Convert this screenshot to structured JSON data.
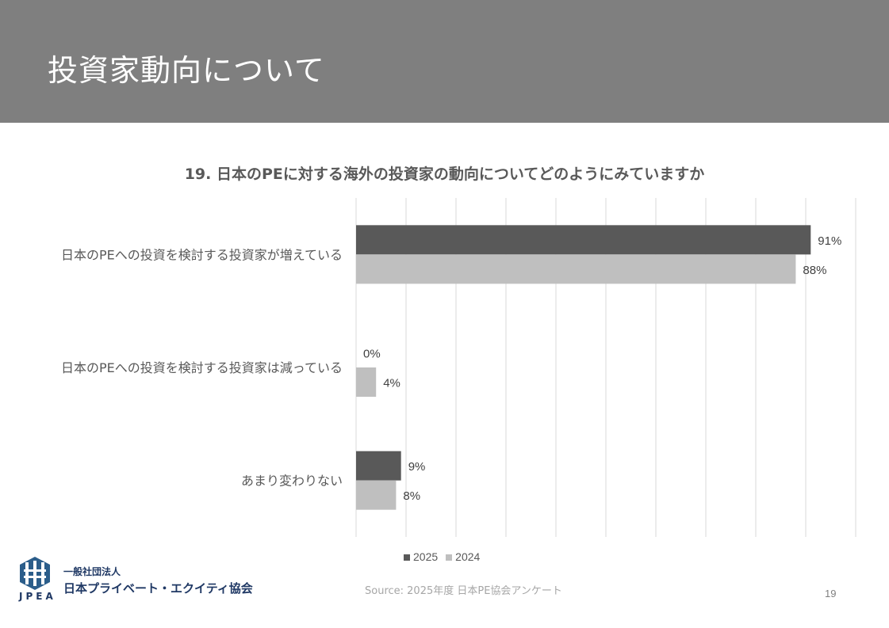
{
  "header": {
    "title": "投資家動向について"
  },
  "chart_data": {
    "type": "bar",
    "orientation": "horizontal",
    "title": "19. 日本のPEに対する海外の投資家の動向についてどのようにみていますか",
    "categories": [
      "日本のPEへの投資を検討する投資家が増えている",
      "日本のPEへの投資を検討する投資家は減っている",
      "あまり変わりない"
    ],
    "series": [
      {
        "name": "2025",
        "color": "#595959",
        "values": [
          91,
          0,
          9
        ],
        "labels": [
          "91%",
          "0%",
          "9%"
        ]
      },
      {
        "name": "2024",
        "color": "#bfbfbf",
        "values": [
          88,
          4,
          8
        ],
        "labels": [
          "88%",
          "4%",
          "8%"
        ]
      }
    ],
    "xlim": [
      0,
      100
    ],
    "grid": true,
    "legend": "bottom"
  },
  "footer": {
    "source": "Source: 2025年度 日本PE協会アンケート",
    "page_number": "19",
    "org_line1": "一般社団法人",
    "org_line2": "日本プライベート・エクイティ協会",
    "logo_text": "JPEA"
  }
}
